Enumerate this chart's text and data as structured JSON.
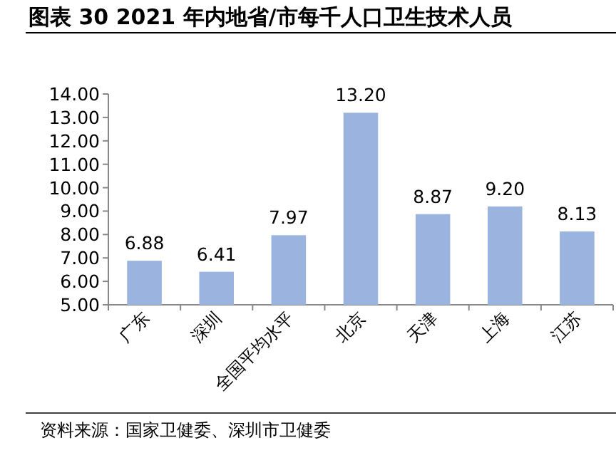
{
  "chart_data": {
    "type": "bar",
    "title": "图表 30 2021 年内地省/市每千人口卫生技术人员",
    "categories": [
      "广东",
      "深圳",
      "全国平均水平",
      "北京",
      "天津",
      "上海",
      "江苏"
    ],
    "values": [
      6.88,
      6.41,
      7.97,
      13.2,
      8.87,
      9.2,
      8.13
    ],
    "color": "#9bb3df",
    "value_labels": [
      "6.88",
      "6.41",
      "7.97",
      "13.20",
      "8.87",
      "9.20",
      "8.13"
    ],
    "ylim": [
      5,
      14
    ],
    "yticks": [
      {
        "value": 5,
        "label": "5.00"
      },
      {
        "value": 6,
        "label": "6.00"
      },
      {
        "value": 7,
        "label": "7.00"
      },
      {
        "value": 8,
        "label": "8.00"
      },
      {
        "value": 9,
        "label": "9.00"
      },
      {
        "value": 10,
        "label": "10.00"
      },
      {
        "value": 11,
        "label": "11.00"
      },
      {
        "value": 12,
        "label": "12.00"
      },
      {
        "value": 13,
        "label": "13.00"
      },
      {
        "value": 14,
        "label": "14.00"
      }
    ],
    "annotations": [
      "资料来源：国家卫健委、深圳市卫健委"
    ]
  }
}
